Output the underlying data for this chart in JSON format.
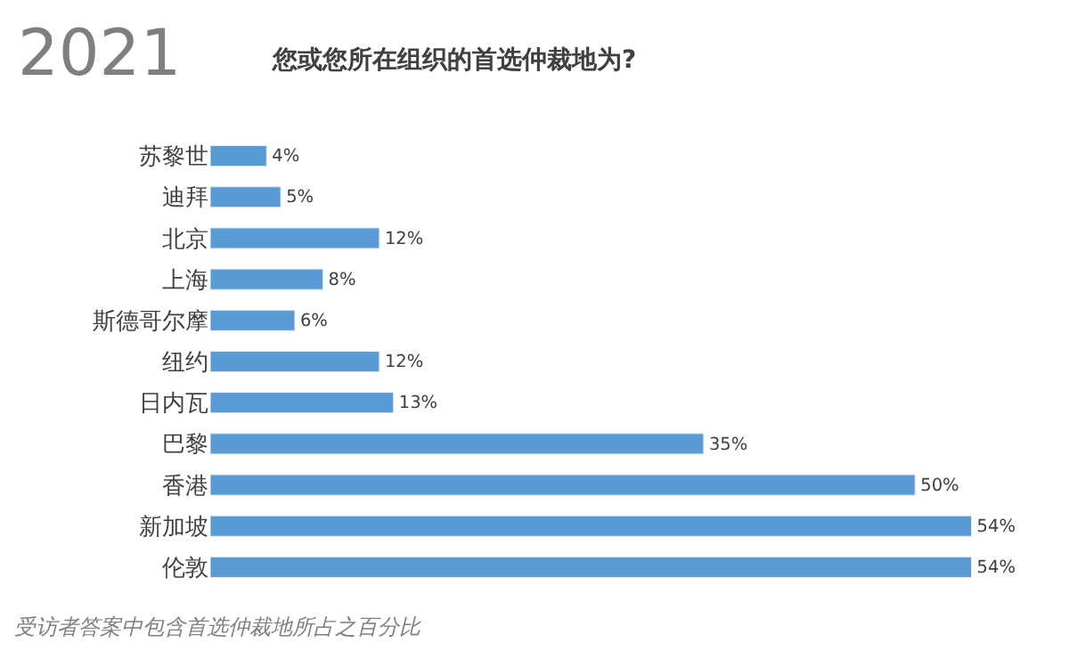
{
  "chart_data": {
    "type": "bar",
    "orientation": "horizontal",
    "title": "2021",
    "subtitle": "您或您所在组织的首选仲裁地为?",
    "categories": [
      "苏黎世",
      "迪拜",
      "北京",
      "上海",
      "斯德哥尔摩",
      "纽约",
      "日内瓦",
      "巴黎",
      "香港",
      "新加坡",
      "伦敦"
    ],
    "values": [
      4,
      5,
      12,
      8,
      6,
      12,
      13,
      35,
      50,
      54,
      54
    ],
    "value_labels": [
      "4%",
      "5%",
      "12%",
      "8%",
      "6%",
      "12%",
      "13%",
      "35%",
      "50%",
      "54%",
      "54%"
    ],
    "color": "#5b9bd5",
    "annotations": [
      "受访者答案中包含首选仲裁地所占之百分比"
    ]
  }
}
